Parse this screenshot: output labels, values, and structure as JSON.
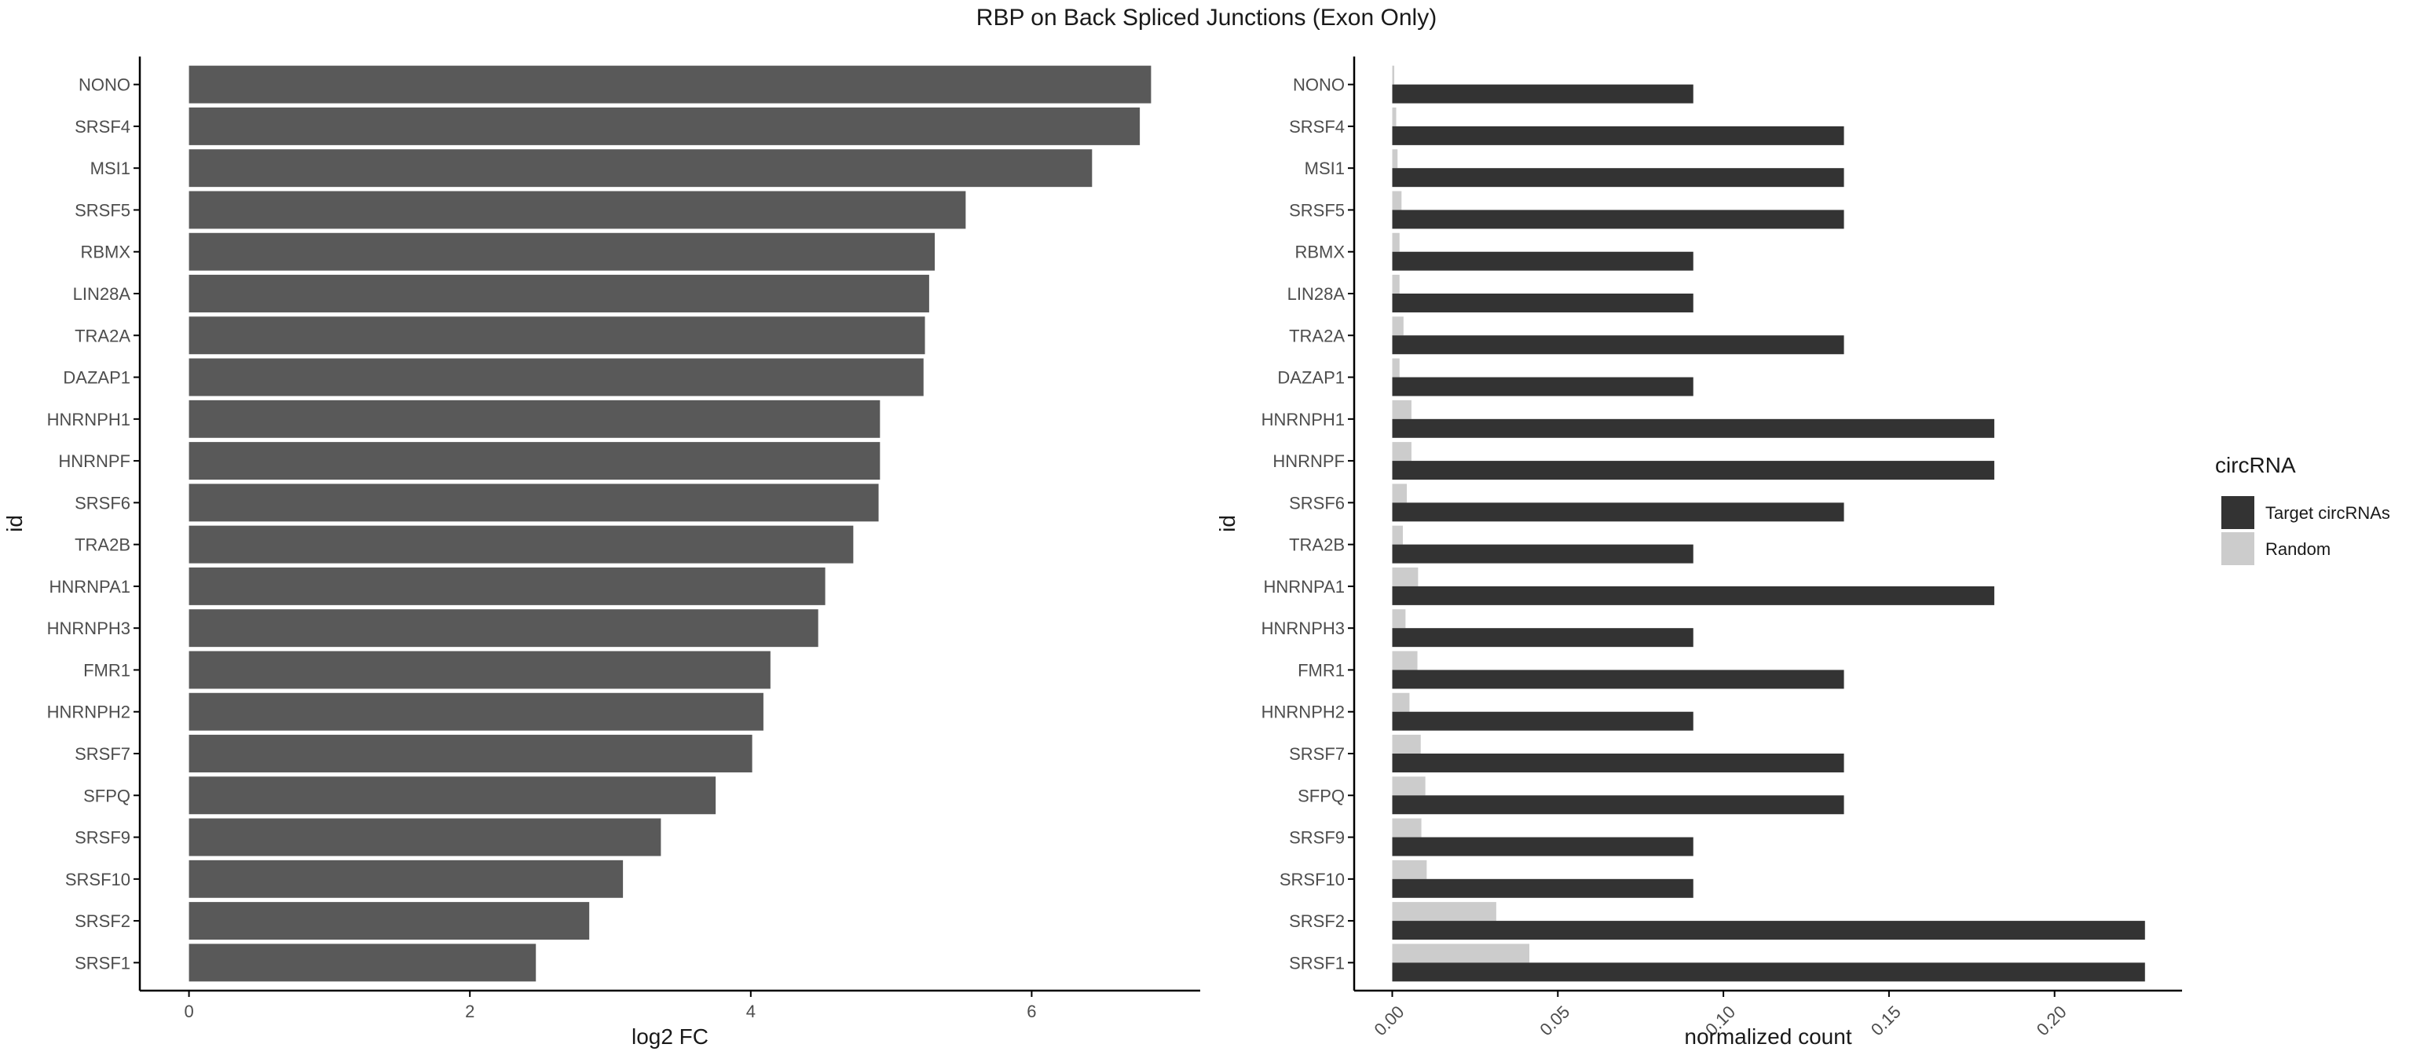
{
  "figure": {
    "title": "RBP on Back Spliced Junctions (Exon Only)"
  },
  "colors": {
    "left_bar": "#595959",
    "target": "#333333",
    "random": "#cccccc",
    "axis": "#000000",
    "text": "#1a1a1a",
    "tick_text": "#4d4d4d"
  },
  "chart_data": [
    {
      "type": "bar",
      "orientation": "horizontal",
      "categories": [
        "NONO",
        "SRSF4",
        "MSI1",
        "SRSF5",
        "RBMX",
        "LIN28A",
        "TRA2A",
        "DAZAP1",
        "HNRNPH1",
        "HNRNPF",
        "SRSF6",
        "TRA2B",
        "HNRNPA1",
        "HNRNPH3",
        "FMR1",
        "HNRNPH2",
        "SRSF7",
        "SFPQ",
        "SRSF9",
        "SRSF10",
        "SRSF2",
        "SRSF1"
      ],
      "values": [
        6.85,
        6.77,
        6.43,
        5.53,
        5.31,
        5.27,
        5.24,
        5.23,
        4.92,
        4.92,
        4.91,
        4.73,
        4.53,
        4.48,
        4.14,
        4.09,
        4.01,
        3.75,
        3.36,
        3.09,
        2.85,
        2.47
      ],
      "xlabel": "log2 FC",
      "ylabel": "id",
      "xlim": [
        -0.35,
        7.2
      ],
      "xticks": [
        "0",
        "2",
        "4",
        "6"
      ],
      "grid": false
    },
    {
      "type": "bar",
      "orientation": "horizontal",
      "grouped": true,
      "categories": [
        "NONO",
        "SRSF4",
        "MSI1",
        "SRSF5",
        "RBMX",
        "LIN28A",
        "TRA2A",
        "DAZAP1",
        "HNRNPH1",
        "HNRNPF",
        "SRSF6",
        "TRA2B",
        "HNRNPA1",
        "HNRNPH3",
        "FMR1",
        "HNRNPH2",
        "SRSF7",
        "SFPQ",
        "SRSF9",
        "SRSF10",
        "SRSF2",
        "SRSF1"
      ],
      "series": [
        {
          "name": "Target circRNAs",
          "values": [
            0.0909,
            0.1364,
            0.1364,
            0.1364,
            0.0909,
            0.0909,
            0.1364,
            0.0909,
            0.1818,
            0.1818,
            0.1364,
            0.0909,
            0.1818,
            0.0909,
            0.1364,
            0.0909,
            0.1364,
            0.1364,
            0.0909,
            0.0909,
            0.2273,
            0.2273
          ]
        },
        {
          "name": "Random",
          "values": [
            0.0006,
            0.0012,
            0.0016,
            0.0028,
            0.0022,
            0.0022,
            0.0034,
            0.0022,
            0.0058,
            0.0058,
            0.0044,
            0.0032,
            0.0078,
            0.004,
            0.0076,
            0.0052,
            0.0086,
            0.01,
            0.0088,
            0.0104,
            0.0314,
            0.0414
          ]
        }
      ],
      "xlabel": "normalized count",
      "ylabel": "id",
      "xlim": [
        -0.0115,
        0.2385
      ],
      "xticks": [
        "0.00",
        "0.05",
        "0.10",
        "0.15",
        "0.20"
      ],
      "legend": {
        "title": "circRNA",
        "placement": "right"
      },
      "grid": false
    }
  ]
}
